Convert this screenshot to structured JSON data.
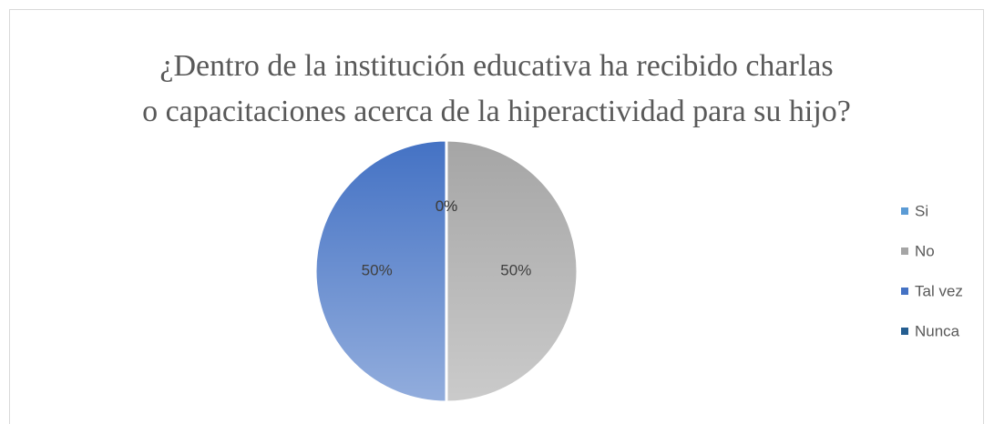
{
  "chart_data": {
    "type": "pie",
    "title": "¿Dentro de la institución educativa ha recibido charlas o capacitaciones acerca de la hiperactividad para su hijo?",
    "categories": [
      "Si",
      "No",
      "Tal vez",
      "Nunca"
    ],
    "values": [
      0,
      50,
      50,
      0
    ],
    "value_labels": [
      "0%",
      "50%",
      "50%",
      "0%"
    ],
    "colors": [
      "#5b9bd5",
      "#a5a5a5",
      "#4472c4",
      "#255e91"
    ],
    "legend": "right"
  }
}
